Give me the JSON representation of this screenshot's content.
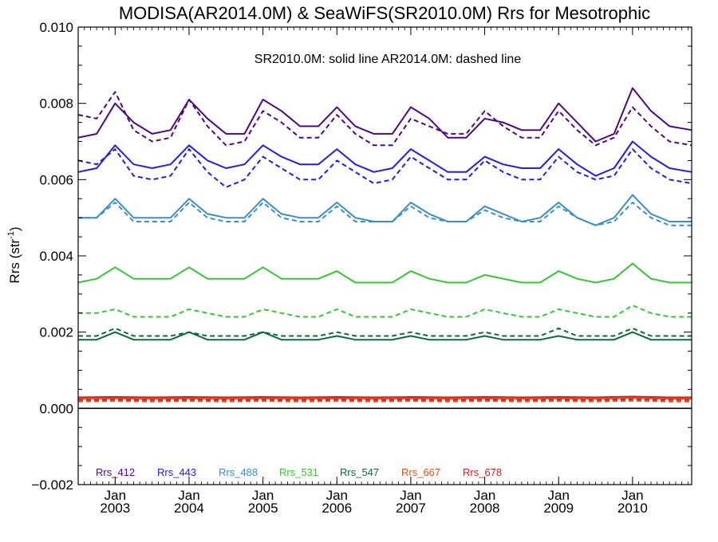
{
  "chart_data": {
    "type": "line",
    "title": "MODISA(AR2014.0M) & SeaWiFS(SR2010.0M)  Rrs for Mesotrophic",
    "ylabel": "Rrs (str",
    "ylabel_sup": "-1",
    "ylabel_tail": ")",
    "annotation": "SR2010.0M: solid line   AR2014.0M: dashed line",
    "ylim": [
      -0.002,
      0.01
    ],
    "xlim": [
      2002.5,
      2010.8
    ],
    "yticks": [
      -0.002,
      0.0,
      0.002,
      0.004,
      0.006,
      0.008,
      0.01
    ],
    "ytick_labels": [
      "−0.002",
      "0.000",
      "0.002",
      "0.004",
      "0.006",
      "0.008",
      "0.010"
    ],
    "xticks": [
      {
        "x": 2003.0,
        "month": "Jan",
        "year": "2003"
      },
      {
        "x": 2004.0,
        "month": "Jan",
        "year": "2004"
      },
      {
        "x": 2005.0,
        "month": "Jan",
        "year": "2005"
      },
      {
        "x": 2006.0,
        "month": "Jan",
        "year": "2006"
      },
      {
        "x": 2007.0,
        "month": "Jan",
        "year": "2007"
      },
      {
        "x": 2008.0,
        "month": "Jan",
        "year": "2008"
      },
      {
        "x": 2009.0,
        "month": "Jan",
        "year": "2009"
      },
      {
        "x": 2010.0,
        "month": "Jan",
        "year": "2010"
      }
    ],
    "zero_line": 0,
    "legend": [
      {
        "name": "Rrs_412",
        "color": "#4b0a82"
      },
      {
        "name": "Rrs_443",
        "color": "#1f1fe6"
      },
      {
        "name": "Rrs_488",
        "color": "#3a8fc8"
      },
      {
        "name": "Rrs_531",
        "color": "#33c833"
      },
      {
        "name": "Rrs_547",
        "color": "#0c6b3a"
      },
      {
        "name": "Rrs_667",
        "color": "#e0531a"
      },
      {
        "name": "Rrs_678",
        "color": "#d42020"
      }
    ],
    "series": [
      {
        "name": "Rrs_412",
        "sensor": "SR2010.0M",
        "style": "solid",
        "color": "#4b0a82",
        "x": [
          2002.5,
          2002.75,
          2003.0,
          2003.25,
          2003.5,
          2003.75,
          2004.0,
          2004.25,
          2004.5,
          2004.75,
          2005.0,
          2005.25,
          2005.5,
          2005.75,
          2006.0,
          2006.25,
          2006.5,
          2006.75,
          2007.0,
          2007.25,
          2007.5,
          2007.75,
          2008.0,
          2008.25,
          2008.5,
          2008.75,
          2009.0,
          2009.25,
          2009.5,
          2009.75,
          2010.0,
          2010.25,
          2010.5,
          2010.8
        ],
        "y": [
          0.0071,
          0.0072,
          0.008,
          0.0075,
          0.0072,
          0.0073,
          0.0081,
          0.0076,
          0.0072,
          0.0072,
          0.0081,
          0.0078,
          0.0074,
          0.0074,
          0.0079,
          0.0074,
          0.0072,
          0.0072,
          0.0079,
          0.0076,
          0.0071,
          0.0071,
          0.0076,
          0.0075,
          0.0073,
          0.0073,
          0.008,
          0.0075,
          0.007,
          0.0072,
          0.0084,
          0.0078,
          0.0074,
          0.0073
        ]
      },
      {
        "name": "Rrs_412",
        "sensor": "AR2014.0M",
        "style": "dashed",
        "color": "#4b0a82",
        "x": [
          2002.5,
          2002.75,
          2003.0,
          2003.25,
          2003.5,
          2003.75,
          2004.0,
          2004.25,
          2004.5,
          2004.75,
          2005.0,
          2005.25,
          2005.5,
          2005.75,
          2006.0,
          2006.25,
          2006.5,
          2006.75,
          2007.0,
          2007.25,
          2007.5,
          2007.75,
          2008.0,
          2008.25,
          2008.5,
          2008.75,
          2009.0,
          2009.25,
          2009.5,
          2009.75,
          2010.0,
          2010.25,
          2010.5,
          2010.8
        ],
        "y": [
          0.0077,
          0.0076,
          0.0083,
          0.0073,
          0.007,
          0.0071,
          0.0081,
          0.0074,
          0.0069,
          0.007,
          0.0078,
          0.0075,
          0.0071,
          0.0071,
          0.0077,
          0.0072,
          0.0069,
          0.0069,
          0.0076,
          0.0074,
          0.0072,
          0.0072,
          0.0078,
          0.0074,
          0.0071,
          0.0071,
          0.0078,
          0.0073,
          0.0069,
          0.0071,
          0.0079,
          0.0074,
          0.007,
          0.0069
        ]
      },
      {
        "name": "Rrs_443",
        "sensor": "SR2010.0M",
        "style": "solid",
        "color": "#1f1fe6",
        "x": [
          2002.5,
          2002.75,
          2003.0,
          2003.25,
          2003.5,
          2003.75,
          2004.0,
          2004.25,
          2004.5,
          2004.75,
          2005.0,
          2005.25,
          2005.5,
          2005.75,
          2006.0,
          2006.25,
          2006.5,
          2006.75,
          2007.0,
          2007.25,
          2007.5,
          2007.75,
          2008.0,
          2008.25,
          2008.5,
          2008.75,
          2009.0,
          2009.25,
          2009.5,
          2009.75,
          2010.0,
          2010.25,
          2010.5,
          2010.8
        ],
        "y": [
          0.0062,
          0.0063,
          0.0069,
          0.0064,
          0.0063,
          0.0064,
          0.0069,
          0.0065,
          0.0063,
          0.0064,
          0.0069,
          0.0066,
          0.0064,
          0.0064,
          0.0068,
          0.0064,
          0.0062,
          0.0063,
          0.0068,
          0.0065,
          0.0062,
          0.0062,
          0.0066,
          0.0064,
          0.0063,
          0.0063,
          0.0068,
          0.0064,
          0.0061,
          0.0063,
          0.007,
          0.0066,
          0.0063,
          0.0062
        ]
      },
      {
        "name": "Rrs_443",
        "sensor": "AR2014.0M",
        "style": "dashed",
        "color": "#1f1fe6",
        "x": [
          2002.5,
          2002.75,
          2003.0,
          2003.25,
          2003.5,
          2003.75,
          2004.0,
          2004.25,
          2004.5,
          2004.75,
          2005.0,
          2005.25,
          2005.5,
          2005.75,
          2006.0,
          2006.25,
          2006.5,
          2006.75,
          2007.0,
          2007.25,
          2007.5,
          2007.75,
          2008.0,
          2008.25,
          2008.5,
          2008.75,
          2009.0,
          2009.25,
          2009.5,
          2009.75,
          2010.0,
          2010.25,
          2010.5,
          2010.8
        ],
        "y": [
          0.0065,
          0.0064,
          0.0068,
          0.0061,
          0.006,
          0.0061,
          0.0068,
          0.0062,
          0.0058,
          0.006,
          0.0066,
          0.0063,
          0.006,
          0.006,
          0.0065,
          0.0062,
          0.0059,
          0.006,
          0.0066,
          0.0063,
          0.006,
          0.006,
          0.0065,
          0.0062,
          0.006,
          0.006,
          0.0066,
          0.0062,
          0.006,
          0.0061,
          0.0068,
          0.0063,
          0.006,
          0.0059
        ]
      },
      {
        "name": "Rrs_488",
        "sensor": "SR2010.0M",
        "style": "solid",
        "color": "#3a8fc8",
        "x": [
          2002.5,
          2002.75,
          2003.0,
          2003.25,
          2003.5,
          2003.75,
          2004.0,
          2004.25,
          2004.5,
          2004.75,
          2005.0,
          2005.25,
          2005.5,
          2005.75,
          2006.0,
          2006.25,
          2006.5,
          2006.75,
          2007.0,
          2007.25,
          2007.5,
          2007.75,
          2008.0,
          2008.25,
          2008.5,
          2008.75,
          2009.0,
          2009.25,
          2009.5,
          2009.75,
          2010.0,
          2010.25,
          2010.5,
          2010.8
        ],
        "y": [
          0.005,
          0.005,
          0.0055,
          0.005,
          0.005,
          0.005,
          0.0055,
          0.0051,
          0.005,
          0.005,
          0.0055,
          0.0051,
          0.005,
          0.005,
          0.0054,
          0.005,
          0.0049,
          0.0049,
          0.0054,
          0.0051,
          0.0049,
          0.0049,
          0.0053,
          0.0051,
          0.0049,
          0.005,
          0.0054,
          0.005,
          0.0048,
          0.005,
          0.0056,
          0.0051,
          0.0049,
          0.0049
        ]
      },
      {
        "name": "Rrs_488",
        "sensor": "AR2014.0M",
        "style": "dashed",
        "color": "#3a8fc8",
        "x": [
          2002.5,
          2002.75,
          2003.0,
          2003.25,
          2003.5,
          2003.75,
          2004.0,
          2004.25,
          2004.5,
          2004.75,
          2005.0,
          2005.25,
          2005.5,
          2005.75,
          2006.0,
          2006.25,
          2006.5,
          2006.75,
          2007.0,
          2007.25,
          2007.5,
          2007.75,
          2008.0,
          2008.25,
          2008.5,
          2008.75,
          2009.0,
          2009.25,
          2009.5,
          2009.75,
          2010.0,
          2010.25,
          2010.5,
          2010.8
        ],
        "y": [
          0.005,
          0.005,
          0.0054,
          0.0049,
          0.0049,
          0.0049,
          0.0054,
          0.005,
          0.0049,
          0.0049,
          0.0054,
          0.005,
          0.0049,
          0.0049,
          0.0053,
          0.0049,
          0.0049,
          0.0049,
          0.0053,
          0.005,
          0.0049,
          0.0049,
          0.0052,
          0.005,
          0.0049,
          0.0049,
          0.0053,
          0.005,
          0.0048,
          0.0049,
          0.0054,
          0.005,
          0.0048,
          0.0048
        ]
      },
      {
        "name": "Rrs_531",
        "sensor": "SR2010.0M",
        "style": "solid",
        "color": "#33c833",
        "x": [
          2002.5,
          2002.75,
          2003.0,
          2003.25,
          2003.5,
          2003.75,
          2004.0,
          2004.25,
          2004.5,
          2004.75,
          2005.0,
          2005.25,
          2005.5,
          2005.75,
          2006.0,
          2006.25,
          2006.5,
          2006.75,
          2007.0,
          2007.25,
          2007.5,
          2007.75,
          2008.0,
          2008.25,
          2008.5,
          2008.75,
          2009.0,
          2009.25,
          2009.5,
          2009.75,
          2010.0,
          2010.25,
          2010.5,
          2010.8
        ],
        "y": [
          0.0033,
          0.0034,
          0.0037,
          0.0034,
          0.0034,
          0.0034,
          0.0037,
          0.0034,
          0.0034,
          0.0034,
          0.0037,
          0.0034,
          0.0034,
          0.0034,
          0.0036,
          0.0033,
          0.0033,
          0.0033,
          0.0036,
          0.0034,
          0.0033,
          0.0033,
          0.0035,
          0.0034,
          0.0033,
          0.0033,
          0.0036,
          0.0034,
          0.0033,
          0.0034,
          0.0038,
          0.0034,
          0.0033,
          0.0033
        ]
      },
      {
        "name": "Rrs_531",
        "sensor": "AR2014.0M",
        "style": "dashed",
        "color": "#33c833",
        "x": [
          2002.5,
          2002.75,
          2003.0,
          2003.25,
          2003.5,
          2003.75,
          2004.0,
          2004.25,
          2004.5,
          2004.75,
          2005.0,
          2005.25,
          2005.5,
          2005.75,
          2006.0,
          2006.25,
          2006.5,
          2006.75,
          2007.0,
          2007.25,
          2007.5,
          2007.75,
          2008.0,
          2008.25,
          2008.5,
          2008.75,
          2009.0,
          2009.25,
          2009.5,
          2009.75,
          2010.0,
          2010.25,
          2010.5,
          2010.8
        ],
        "y": [
          0.0025,
          0.0025,
          0.0026,
          0.0024,
          0.0024,
          0.0024,
          0.0026,
          0.0025,
          0.0024,
          0.0024,
          0.0026,
          0.0025,
          0.0024,
          0.0024,
          0.0026,
          0.0024,
          0.0024,
          0.0024,
          0.0026,
          0.0025,
          0.0024,
          0.0024,
          0.0026,
          0.0025,
          0.0024,
          0.0024,
          0.0026,
          0.0025,
          0.0024,
          0.0024,
          0.0027,
          0.0025,
          0.0024,
          0.0024
        ]
      },
      {
        "name": "Rrs_547",
        "sensor": "SR2010.0M",
        "style": "solid",
        "color": "#0c6b3a",
        "x": [
          2002.5,
          2002.75,
          2003.0,
          2003.25,
          2003.5,
          2003.75,
          2004.0,
          2004.25,
          2004.5,
          2004.75,
          2005.0,
          2005.25,
          2005.5,
          2005.75,
          2006.0,
          2006.25,
          2006.5,
          2006.75,
          2007.0,
          2007.25,
          2007.5,
          2007.75,
          2008.0,
          2008.25,
          2008.5,
          2008.75,
          2009.0,
          2009.25,
          2009.5,
          2009.75,
          2010.0,
          2010.25,
          2010.5,
          2010.8
        ],
        "y": [
          0.0018,
          0.0018,
          0.002,
          0.0018,
          0.0018,
          0.0018,
          0.002,
          0.0018,
          0.0018,
          0.0018,
          0.002,
          0.0018,
          0.0018,
          0.0018,
          0.0019,
          0.0018,
          0.0018,
          0.0018,
          0.0019,
          0.0018,
          0.0018,
          0.0018,
          0.0019,
          0.0018,
          0.0018,
          0.0018,
          0.0019,
          0.0018,
          0.0018,
          0.0018,
          0.002,
          0.0018,
          0.0018,
          0.0018
        ]
      },
      {
        "name": "Rrs_547",
        "sensor": "AR2014.0M",
        "style": "dashed",
        "color": "#0c6b3a",
        "x": [
          2002.5,
          2002.75,
          2003.0,
          2003.25,
          2003.5,
          2003.75,
          2004.0,
          2004.25,
          2004.5,
          2004.75,
          2005.0,
          2005.25,
          2005.5,
          2005.75,
          2006.0,
          2006.25,
          2006.5,
          2006.75,
          2007.0,
          2007.25,
          2007.5,
          2007.75,
          2008.0,
          2008.25,
          2008.5,
          2008.75,
          2009.0,
          2009.25,
          2009.5,
          2009.75,
          2010.0,
          2010.25,
          2010.5,
          2010.8
        ],
        "y": [
          0.0019,
          0.0019,
          0.0021,
          0.0019,
          0.0019,
          0.0019,
          0.002,
          0.0019,
          0.0019,
          0.0019,
          0.002,
          0.0019,
          0.0019,
          0.0019,
          0.002,
          0.0019,
          0.0019,
          0.0019,
          0.002,
          0.0019,
          0.0019,
          0.0019,
          0.002,
          0.0019,
          0.0019,
          0.0019,
          0.0021,
          0.0019,
          0.0019,
          0.0019,
          0.0021,
          0.0019,
          0.0019,
          0.0019
        ]
      },
      {
        "name": "Rrs_667",
        "sensor": "SR2010.0M",
        "style": "solid",
        "color": "#e0531a",
        "x": [
          2002.5,
          2003.0,
          2003.5,
          2004.0,
          2004.5,
          2005.0,
          2005.5,
          2006.0,
          2006.5,
          2007.0,
          2007.5,
          2008.0,
          2008.5,
          2009.0,
          2009.5,
          2010.0,
          2010.5,
          2010.8
        ],
        "y": [
          0.00025,
          0.00026,
          0.00025,
          0.00026,
          0.00025,
          0.00026,
          0.00025,
          0.00026,
          0.00025,
          0.00026,
          0.00025,
          0.00026,
          0.00025,
          0.00026,
          0.00025,
          0.00027,
          0.00025,
          0.00025
        ]
      },
      {
        "name": "Rrs_667",
        "sensor": "AR2014.0M",
        "style": "dashed",
        "color": "#e0531a",
        "x": [
          2002.5,
          2003.0,
          2003.5,
          2004.0,
          2004.5,
          2005.0,
          2005.5,
          2006.0,
          2006.5,
          2007.0,
          2007.5,
          2008.0,
          2008.5,
          2009.0,
          2009.5,
          2010.0,
          2010.5,
          2010.8
        ],
        "y": [
          0.00018,
          0.00019,
          0.00018,
          0.00019,
          0.00018,
          0.00019,
          0.00018,
          0.00019,
          0.00018,
          0.00019,
          0.00018,
          0.00019,
          0.00018,
          0.00019,
          0.00018,
          0.0002,
          0.00018,
          0.00018
        ]
      },
      {
        "name": "Rrs_678",
        "sensor": "SR2010.0M",
        "style": "solid",
        "color": "#d42020",
        "x": [
          2002.5,
          2003.0,
          2003.5,
          2004.0,
          2004.5,
          2005.0,
          2005.5,
          2006.0,
          2006.5,
          2007.0,
          2007.5,
          2008.0,
          2008.5,
          2009.0,
          2009.5,
          2010.0,
          2010.5,
          2010.8
        ],
        "y": [
          0.00029,
          0.0003,
          0.00029,
          0.0003,
          0.00029,
          0.0003,
          0.00029,
          0.0003,
          0.00029,
          0.0003,
          0.00029,
          0.0003,
          0.00029,
          0.0003,
          0.00029,
          0.00031,
          0.00029,
          0.00029
        ]
      },
      {
        "name": "Rrs_678",
        "sensor": "AR2014.0M",
        "style": "dashed",
        "color": "#d42020",
        "x": [
          2002.5,
          2003.0,
          2003.5,
          2004.0,
          2004.5,
          2005.0,
          2005.5,
          2006.0,
          2006.5,
          2007.0,
          2007.5,
          2008.0,
          2008.5,
          2009.0,
          2009.5,
          2010.0,
          2010.5,
          2010.8
        ],
        "y": [
          0.00022,
          0.00023,
          0.00022,
          0.00023,
          0.00022,
          0.00023,
          0.00022,
          0.00023,
          0.00022,
          0.00023,
          0.00022,
          0.00023,
          0.00022,
          0.00023,
          0.00022,
          0.00024,
          0.00022,
          0.00022
        ]
      }
    ]
  }
}
